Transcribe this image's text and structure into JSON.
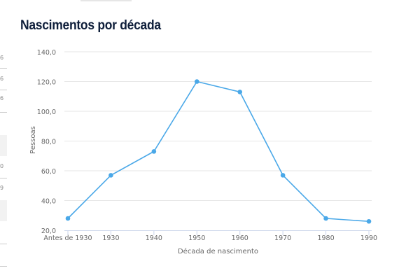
{
  "title": "Nascimentos por década",
  "chart_data": {
    "type": "line",
    "title": "Nascimentos por década",
    "xlabel": "Década de nascimento",
    "ylabel": "Pessoas",
    "categories": [
      "Antes de 1930",
      "1930",
      "1940",
      "1950",
      "1960",
      "1970",
      "1980",
      "1990"
    ],
    "series": [
      {
        "name": "Pessoas",
        "values": [
          28,
          57,
          73,
          120,
          113,
          57,
          28,
          26
        ]
      }
    ],
    "yticks": [
      "20,0",
      "40,0",
      "60,0",
      "80,0",
      "100,0",
      "120,0",
      "140,0"
    ],
    "ylim": [
      20,
      140
    ],
    "grid": true,
    "legend": "none",
    "color": "#4aa8e8"
  }
}
